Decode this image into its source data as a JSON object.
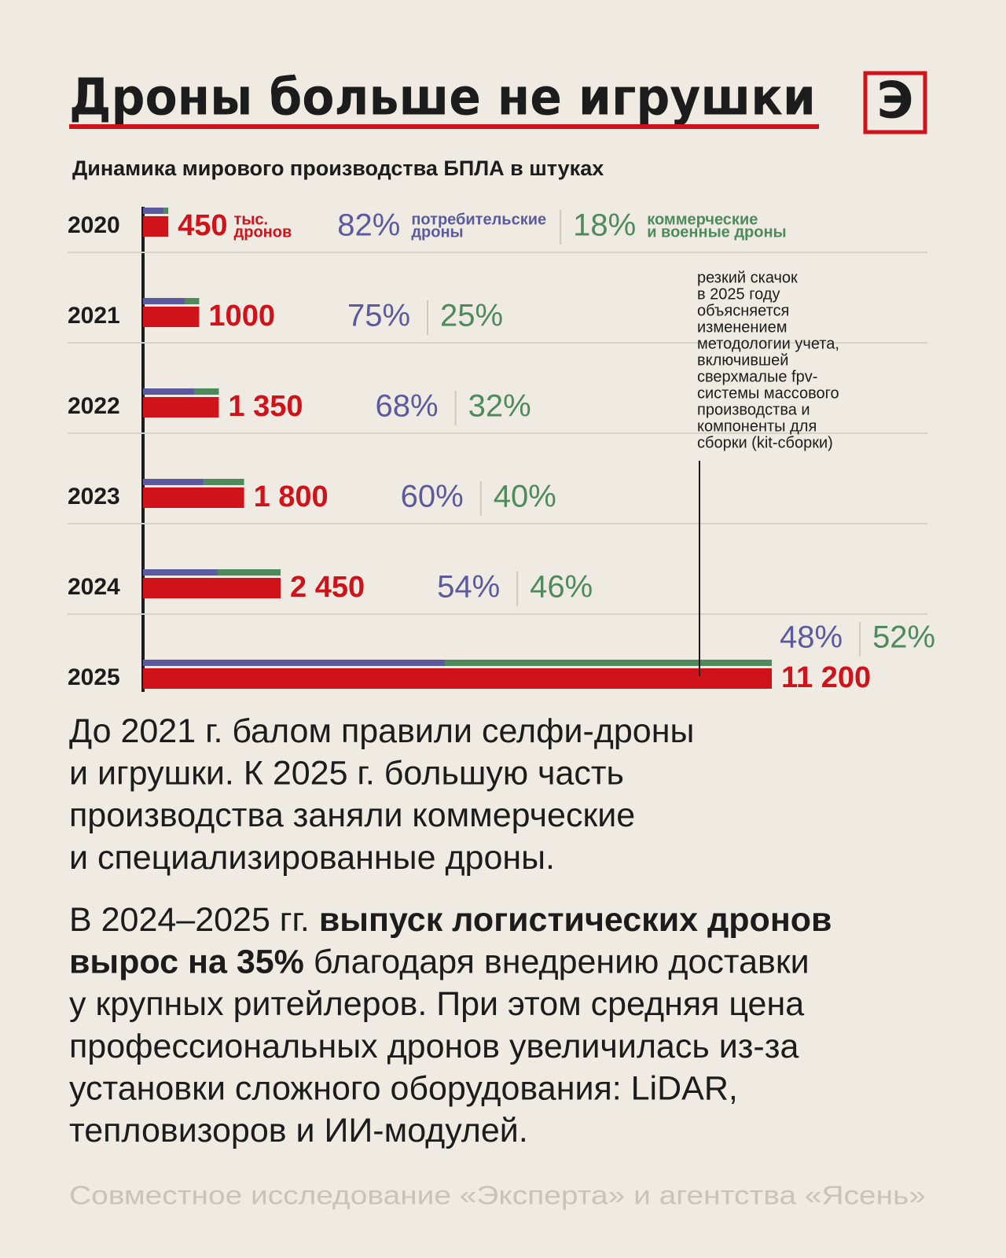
{
  "logo": "Э",
  "chart_data": {
    "type": "bar",
    "orientation": "horizontal",
    "title": "Дроны больше не игрушки",
    "subtitle": "Динамика мирового производства БПЛА в штуках",
    "categories": [
      "2020",
      "2021",
      "2022",
      "2023",
      "2024",
      "2025"
    ],
    "values": [
      450,
      1000,
      1350,
      1800,
      2450,
      11200
    ],
    "value_labels": [
      "450",
      "1000",
      "1 350",
      "1 800",
      "2 450",
      "11 200"
    ],
    "unit_label": [
      "тыс.",
      "дронов"
    ],
    "color": "#d0121b",
    "shares": [
      {
        "name": [
          "потребительские",
          "дроны"
        ],
        "color": "#5b5a9e",
        "values": [
          82,
          75,
          68,
          60,
          54,
          48
        ],
        "value_labels": [
          "82%",
          "75%",
          "68%",
          "60%",
          "54%",
          "48%"
        ]
      },
      {
        "name": [
          "коммерческие",
          "и военные дроны"
        ],
        "color": "#4e8a5c",
        "values": [
          18,
          25,
          32,
          40,
          46,
          52
        ],
        "value_labels": [
          "18%",
          "25%",
          "32%",
          "40%",
          "46%",
          "52%"
        ]
      }
    ],
    "annotation": [
      "резкий скачок",
      "в 2025 году",
      "объясняется",
      "изменением",
      "методологии учета,",
      "включившей",
      "сверхмалые fpv-",
      "системы массового",
      "производства и",
      "компоненты для",
      "сборки (kit-сборки)"
    ]
  },
  "paragraphs": [
    {
      "lines": [
        [
          {
            "text": "До 2021 г. балом правили селфи-дроны",
            "bold": false
          }
        ],
        [
          {
            "text": "и игрушки. К 2025 г. большую часть",
            "bold": false
          }
        ],
        [
          {
            "text": "производства заняли коммерческие",
            "bold": false
          }
        ],
        [
          {
            "text": "и специализированные дроны.",
            "bold": false
          }
        ]
      ]
    },
    {
      "lines": [
        [
          {
            "text": "В 2024–2025 гг. ",
            "bold": false
          },
          {
            "text": "выпуск логистических дронов",
            "bold": true
          }
        ],
        [
          {
            "text": "вырос на 35%",
            "bold": true
          },
          {
            "text": " благодаря внедрению доставки",
            "bold": false
          }
        ],
        [
          {
            "text": "у крупных ритейлеров. При этом средняя цена",
            "bold": false
          }
        ],
        [
          {
            "text": "профессиональных дронов увеличилась из-за",
            "bold": false
          }
        ],
        [
          {
            "text": "установки сложного оборудования: LiDAR,",
            "bold": false
          }
        ],
        [
          {
            "text": "тепловизоров и ИИ-модулей.",
            "bold": false
          }
        ]
      ]
    }
  ],
  "source": "Совместное исследование «Эксперта» и агентства «Ясень»"
}
